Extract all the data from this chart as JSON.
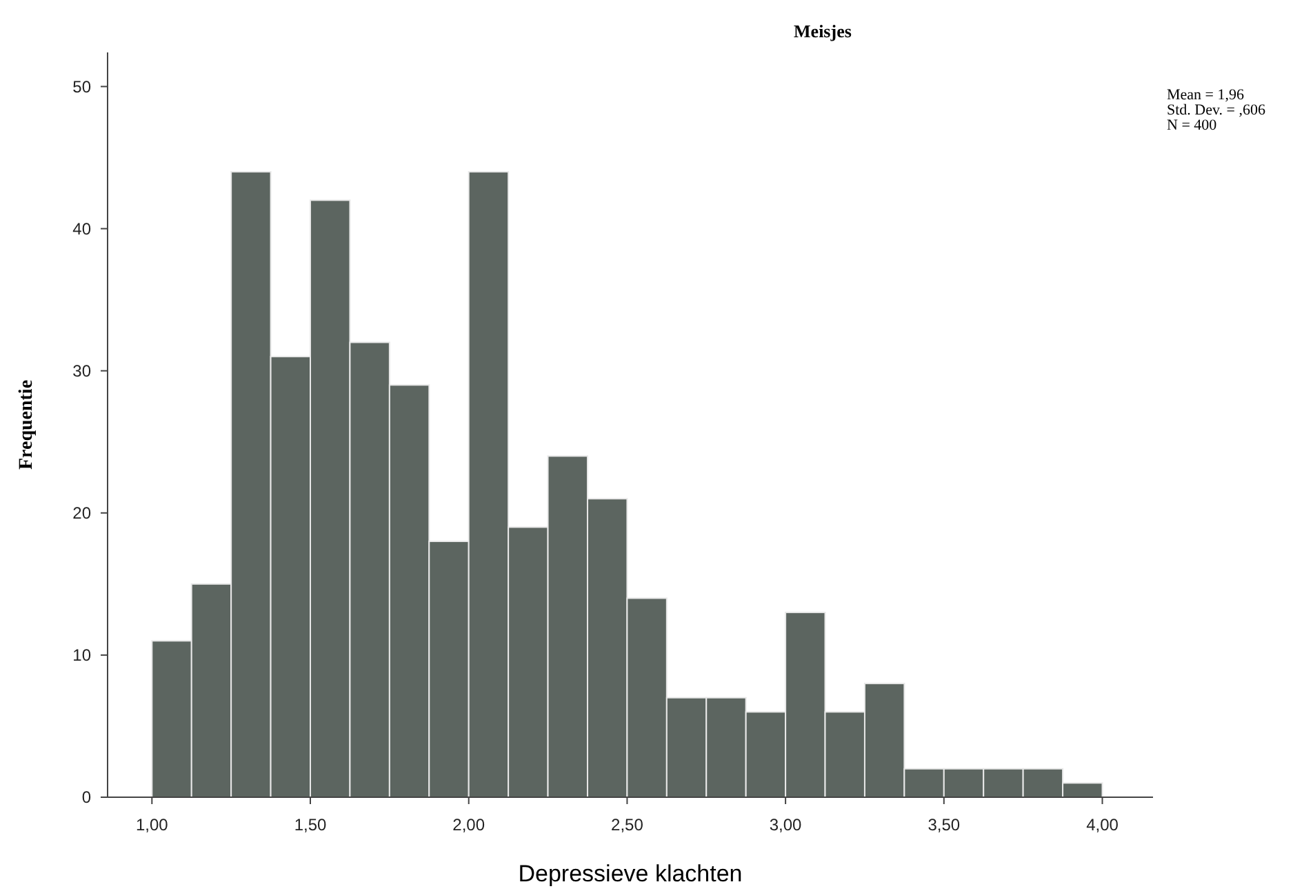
{
  "chart_data": {
    "type": "histogram",
    "title": "Meisjes",
    "xlabel": "Depressieve klachten",
    "ylabel": "Frequentie",
    "bins": [
      1.0,
      1.125,
      1.25,
      1.375,
      1.5,
      1.625,
      1.75,
      1.875,
      2.0,
      2.125,
      2.25,
      2.375,
      2.5,
      2.625,
      2.75,
      2.875,
      3.0,
      3.125,
      3.25,
      3.375,
      3.5,
      3.625,
      3.75,
      3.875,
      4.0
    ],
    "values": [
      11,
      15,
      44,
      31,
      42,
      32,
      29,
      18,
      44,
      19,
      24,
      21,
      14,
      7,
      7,
      6,
      13,
      6,
      8,
      2,
      2,
      2,
      2,
      1
    ],
    "color": "#5c6560",
    "xlim": [
      0.86,
      4.16
    ],
    "xticks": [
      {
        "value": 1,
        "label": "1,00"
      },
      {
        "value": 1.5,
        "label": "1,50"
      },
      {
        "value": 2,
        "label": "2,00"
      },
      {
        "value": 2.5,
        "label": "2,50"
      },
      {
        "value": 3,
        "label": "3,00"
      },
      {
        "value": 3.5,
        "label": "3,50"
      },
      {
        "value": 4,
        "label": "4,00"
      }
    ],
    "ylim": [
      0,
      52.4
    ],
    "yticks": [
      0,
      10,
      20,
      30,
      40,
      50
    ],
    "annotations": [
      "Mean = 1,96",
      "Std. Dev. = ,606",
      "N = 400"
    ],
    "grid": false
  }
}
